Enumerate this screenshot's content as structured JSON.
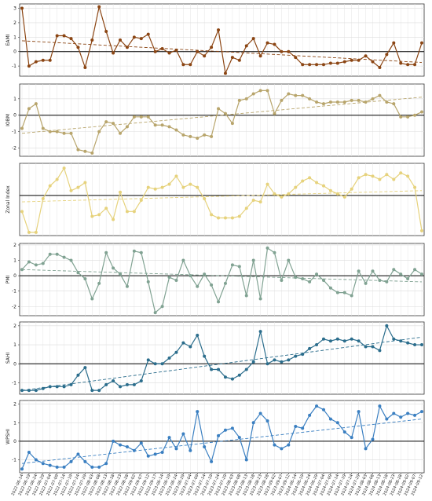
{
  "chart_data": [
    {
      "type": "line",
      "ylabel": "EAMI",
      "color": "#8b4513",
      "ylim": [
        -1.7,
        3.3
      ],
      "yticks": [
        -1,
        0,
        1,
        2,
        3
      ],
      "grid": true,
      "trend": [
        0.75,
        -0.75
      ],
      "values": [
        3.0,
        -1.0,
        -0.7,
        -0.6,
        -0.6,
        1.1,
        1.1,
        0.9,
        0.3,
        -1.1,
        0.8,
        3.1,
        1.4,
        -0.1,
        0.8,
        0.3,
        1.0,
        0.9,
        1.2,
        0.0,
        0.2,
        -0.1,
        0.1,
        -0.9,
        -0.9,
        0.0,
        -0.3,
        0.3,
        1.5,
        -1.5,
        -0.4,
        -0.6,
        0.4,
        0.9,
        -0.3,
        0.6,
        0.5,
        0.0,
        0.0,
        -0.4,
        -0.9,
        -0.9,
        -0.9,
        -0.9,
        -0.8,
        -0.8,
        -0.7,
        -0.6,
        -0.6,
        -0.3,
        -0.7,
        -1.1,
        -0.2,
        0.6,
        -0.8,
        -0.9,
        -0.9,
        0.6
      ]
    },
    {
      "type": "line",
      "ylabel": "IOBM",
      "color": "#b8a56c",
      "ylim": [
        -2.5,
        1.9
      ],
      "yticks": [
        -2,
        -1,
        0,
        1
      ],
      "grid": true,
      "trend": [
        -1.1,
        1.1
      ],
      "values": [
        -0.8,
        0.4,
        0.7,
        -0.8,
        -1.0,
        -1.0,
        -1.1,
        -1.1,
        -2.1,
        -2.2,
        -2.3,
        -1.0,
        -0.4,
        -0.5,
        -1.1,
        -0.7,
        -0.1,
        -0.1,
        -0.1,
        -0.6,
        -0.6,
        -0.7,
        -0.9,
        -1.2,
        -1.3,
        -1.4,
        -1.2,
        -1.3,
        0.4,
        0.1,
        -0.5,
        0.9,
        1.0,
        1.3,
        1.5,
        1.5,
        0.1,
        0.9,
        1.3,
        1.2,
        1.2,
        1.0,
        0.8,
        0.7,
        0.8,
        0.8,
        0.8,
        0.9,
        0.9,
        0.8,
        1.0,
        1.2,
        0.8,
        0.7,
        -0.1,
        -0.1,
        0.0,
        0.2
      ]
    },
    {
      "type": "line",
      "ylabel": "Zonal Index",
      "color": "#e6d27c",
      "ylim": [
        -2.5,
        2.0
      ],
      "yticks": [],
      "grid": true,
      "trend": [
        -0.4,
        0.3
      ],
      "values": [
        -1.0,
        -2.3,
        -2.3,
        -0.2,
        0.6,
        1.0,
        1.7,
        0.3,
        0.5,
        0.8,
        -1.3,
        -1.2,
        -0.8,
        -1.5,
        0.2,
        -1.0,
        -1.0,
        -0.3,
        0.5,
        0.4,
        0.5,
        0.7,
        1.2,
        0.5,
        0.7,
        0.5,
        -0.2,
        -1.2,
        -1.4,
        -1.4,
        -1.4,
        -1.3,
        -0.8,
        -0.3,
        -0.4,
        0.7,
        0.1,
        -0.1,
        0.1,
        0.5,
        0.9,
        1.1,
        0.8,
        0.6,
        0.3,
        0.1,
        -0.1,
        0.4,
        1.1,
        1.3,
        1.2,
        1.0,
        1.3,
        1.0,
        1.4,
        1.2,
        0.5,
        -2.2
      ]
    },
    {
      "type": "line",
      "ylabel": "PMI",
      "color": "#80a292",
      "ylim": [
        -2.6,
        2.1
      ],
      "yticks": [
        -2,
        -1,
        0,
        1,
        2
      ],
      "grid": true,
      "trend": [
        0.4,
        -0.4
      ],
      "values": [
        0.4,
        0.9,
        0.7,
        0.8,
        1.4,
        1.4,
        1.2,
        1.0,
        0.2,
        -0.2,
        -1.5,
        -0.5,
        1.5,
        0.5,
        0.1,
        -0.7,
        1.6,
        1.5,
        -0.4,
        -2.4,
        -2.0,
        -0.1,
        -0.3,
        1.0,
        0.0,
        -0.7,
        0.1,
        -0.6,
        -1.7,
        -0.5,
        0.7,
        0.6,
        -1.3,
        1.0,
        -1.5,
        1.8,
        1.5,
        -0.3,
        1.0,
        -0.1,
        -0.2,
        -0.4,
        0.1,
        -0.3,
        -0.8,
        -1.1,
        -1.1,
        -1.3,
        0.3,
        -0.5,
        0.3,
        -0.3,
        -0.4,
        0.4,
        0.1,
        -0.2,
        0.4,
        0.1
      ]
    },
    {
      "type": "line",
      "ylabel": "SAHI",
      "color": "#2b6d8c",
      "ylim": [
        -1.6,
        2.2
      ],
      "yticks": [
        -1,
        0,
        1,
        2
      ],
      "grid": true,
      "trend": [
        -1.4,
        1.4
      ],
      "values": [
        -1.4,
        -1.4,
        -1.4,
        -1.3,
        -1.2,
        -1.2,
        -1.2,
        -1.1,
        -0.6,
        -0.2,
        -1.4,
        -1.4,
        -1.1,
        -0.9,
        -1.2,
        -1.1,
        -1.1,
        -0.9,
        0.2,
        0.0,
        0.0,
        0.3,
        0.6,
        1.1,
        0.9,
        1.5,
        0.4,
        -0.3,
        -0.3,
        -0.7,
        -0.8,
        -0.6,
        -0.3,
        0.1,
        1.7,
        0.0,
        0.2,
        0.1,
        0.2,
        0.4,
        0.5,
        0.8,
        1.0,
        1.3,
        1.2,
        1.3,
        1.2,
        1.3,
        1.2,
        0.9,
        0.9,
        0.7,
        2.0,
        1.3,
        1.2,
        1.1,
        1.0,
        1.0
      ]
    },
    {
      "type": "line",
      "ylabel": "WPSHI",
      "color": "#3a7fc1",
      "ylim": [
        -1.7,
        2.2
      ],
      "yticks": [
        -1,
        0,
        1,
        2
      ],
      "grid": true,
      "trend": [
        -1.2,
        1.2
      ],
      "values": [
        -1.5,
        -0.6,
        -1.0,
        -1.2,
        -1.3,
        -1.4,
        -1.4,
        -1.1,
        -0.7,
        -1.1,
        -1.4,
        -1.4,
        -1.2,
        0.0,
        -0.2,
        -0.3,
        -0.5,
        -0.1,
        -0.8,
        -0.7,
        -0.6,
        0.2,
        -0.4,
        0.4,
        -0.5,
        1.6,
        -0.3,
        -1.1,
        0.3,
        0.6,
        0.7,
        0.2,
        -1.0,
        1.0,
        1.5,
        1.1,
        -0.2,
        -0.4,
        -0.2,
        0.8,
        0.7,
        1.4,
        1.9,
        1.7,
        1.2,
        1.0,
        0.5,
        0.2,
        1.6,
        -0.4,
        0.1,
        1.9,
        1.2,
        1.5,
        1.3,
        1.5,
        1.4,
        1.6
      ],
      "categories": [
        "2022-06-14",
        "2022-06-19",
        "2022-06-24",
        "2022-06-29",
        "2022-07-04",
        "2022-07-09",
        "2022-07-14",
        "2022-07-19",
        "2022-07-24",
        "2022-07-29",
        "2022-08-03",
        "2022-08-08",
        "2022-08-13",
        "2022-08-18",
        "2022-08-23",
        "2022-08-28",
        "2022-09-02",
        "2022-09-07",
        "2022-09-12",
        "2022-09-17",
        "2023-06-14",
        "2023-06-19",
        "2023-06-24",
        "2023-06-29",
        "2023-07-04",
        "2023-07-09",
        "2023-07-14",
        "2023-07-19",
        "2023-07-24",
        "2023-07-29",
        "2023-08-03",
        "2023-08-08",
        "2023-08-13",
        "2023-08-18",
        "2023-08-23",
        "2023-08-28",
        "2023-09-02",
        "2023-09-07",
        "2023-09-12",
        "2024-06-14",
        "2024-06-19",
        "2024-06-24",
        "2024-06-29",
        "2024-07-04",
        "2024-07-09",
        "2024-07-14",
        "2024-07-19",
        "2024-07-24",
        "2024-07-29",
        "2024-08-03",
        "2024-08-08",
        "2024-08-13",
        "2024-08-18",
        "2024-08-23",
        "2024-08-28",
        "2024-09-02",
        "2024-09-07",
        "2024-09-12"
      ]
    }
  ]
}
